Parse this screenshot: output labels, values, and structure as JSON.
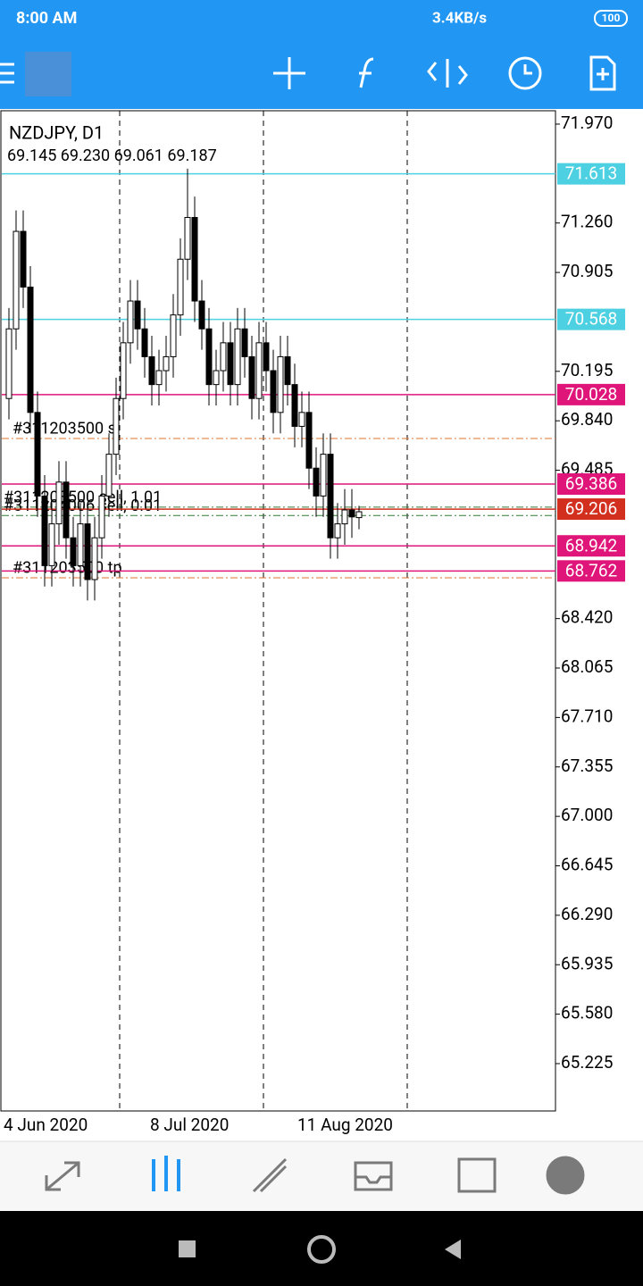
{
  "status_bar": {
    "time": "8:00 AM",
    "speed": "3.4KB/s",
    "battery": "100"
  },
  "chart": {
    "symbol": "NZDJPY, D1",
    "ohlc_text": "69.145 69.230 69.061 69.187",
    "ylim": [
      64.885,
      72.066
    ],
    "yticks": [
      {
        "value": 71.97,
        "label": "71.970"
      },
      {
        "value": 71.26,
        "label": "71.260"
      },
      {
        "value": 70.905,
        "label": "70.905"
      },
      {
        "value": 70.195,
        "label": "70.195"
      },
      {
        "value": 69.84,
        "label": "69.840"
      },
      {
        "value": 69.485,
        "label": "69.485"
      },
      {
        "value": 68.42,
        "label": "68.420"
      },
      {
        "value": 68.065,
        "label": "68.065"
      },
      {
        "value": 67.71,
        "label": "67.710"
      },
      {
        "value": 67.355,
        "label": "67.355"
      },
      {
        "value": 67,
        "label": "67.000"
      },
      {
        "value": 66.645,
        "label": "66.645"
      },
      {
        "value": 66.29,
        "label": "66.290"
      },
      {
        "value": 65.935,
        "label": "65.935"
      },
      {
        "value": 65.58,
        "label": "65.580"
      },
      {
        "value": 65.225,
        "label": "65.225"
      }
    ],
    "levels": [
      {
        "value": 71.613,
        "label": "71.613",
        "color": "#4dd0e1"
      },
      {
        "value": 70.568,
        "label": "70.568",
        "color": "#4dd0e1"
      },
      {
        "value": 70.028,
        "label": "70.028",
        "color": "#e0157a"
      },
      {
        "value": 69.386,
        "label": "69.386",
        "color": "#e0157a"
      },
      {
        "value": 69.206,
        "label": "69.206",
        "color": "#d32f1f"
      },
      {
        "value": 68.942,
        "label": "68.942",
        "color": "#e0157a"
      },
      {
        "value": 68.762,
        "label": "68.762",
        "color": "#e0157a"
      }
    ],
    "orders": [
      {
        "label": "#311203500 sl",
        "price": 69.713
      },
      {
        "label": "#311203500 sell, 1.01",
        "price": 69.22
      },
      {
        "label": "#311204006 sell, 0.01",
        "price": 69.16
      },
      {
        "label": "#311203500 tp",
        "price": 68.713
      }
    ],
    "dates": [
      "4 Jun 2020",
      "8 Jul 2020",
      "11 Aug 2020"
    ],
    "open": [
      70.0,
      70.5,
      71.2,
      70.8,
      69.9,
      69.3,
      68.8,
      69.1,
      69.4,
      69.0,
      68.8,
      69.1,
      68.7,
      69.0,
      69.3,
      69.6,
      70.0,
      70.4,
      70.7,
      70.5,
      70.3,
      70.1,
      70.2,
      70.3,
      70.6,
      71.0,
      71.3,
      70.7,
      70.5,
      70.1,
      70.2,
      70.4,
      70.1,
      70.5,
      70.3,
      70.0,
      70.4,
      70.2,
      69.9,
      70.3,
      70.1,
      69.8,
      69.9,
      69.5,
      69.3,
      69.6,
      69.0,
      69.1,
      69.2,
      69.145
    ],
    "high": [
      70.65,
      71.35,
      71.35,
      70.95,
      70.05,
      69.45,
      69.25,
      69.55,
      69.55,
      69.15,
      69.25,
      69.25,
      69.15,
      69.45,
      69.75,
      70.15,
      70.55,
      70.85,
      70.85,
      70.65,
      70.45,
      70.35,
      70.45,
      70.75,
      71.15,
      71.65,
      71.45,
      70.85,
      70.65,
      70.35,
      70.55,
      70.55,
      70.65,
      70.65,
      70.45,
      70.55,
      70.55,
      70.35,
      70.45,
      70.45,
      70.25,
      70.05,
      70.05,
      69.65,
      69.75,
      69.75,
      69.25,
      69.35,
      69.35,
      69.23
    ],
    "low": [
      69.85,
      70.35,
      70.65,
      69.75,
      69.15,
      68.65,
      68.65,
      68.95,
      68.85,
      68.65,
      68.65,
      68.55,
      68.55,
      68.85,
      69.15,
      69.45,
      69.85,
      70.25,
      70.35,
      70.15,
      69.95,
      69.95,
      70.05,
      70.15,
      70.45,
      70.85,
      70.55,
      70.35,
      69.95,
      69.95,
      70.05,
      69.95,
      69.95,
      70.15,
      69.85,
      69.85,
      70.05,
      69.75,
      69.75,
      69.95,
      69.65,
      69.65,
      69.35,
      69.15,
      69.15,
      68.85,
      68.85,
      68.95,
      69.0,
      69.061
    ],
    "close": [
      70.5,
      71.2,
      70.8,
      69.9,
      69.3,
      68.8,
      69.1,
      69.4,
      69.0,
      68.8,
      69.1,
      68.7,
      69.0,
      69.3,
      69.6,
      70.0,
      70.4,
      70.7,
      70.5,
      70.3,
      70.1,
      70.2,
      70.3,
      70.6,
      71.0,
      71.3,
      70.7,
      70.5,
      70.1,
      70.2,
      70.4,
      70.1,
      70.5,
      70.3,
      70.0,
      70.4,
      70.2,
      69.9,
      70.3,
      70.1,
      69.8,
      69.9,
      69.5,
      69.3,
      69.6,
      69.0,
      69.1,
      69.2,
      69.15,
      69.187
    ]
  }
}
